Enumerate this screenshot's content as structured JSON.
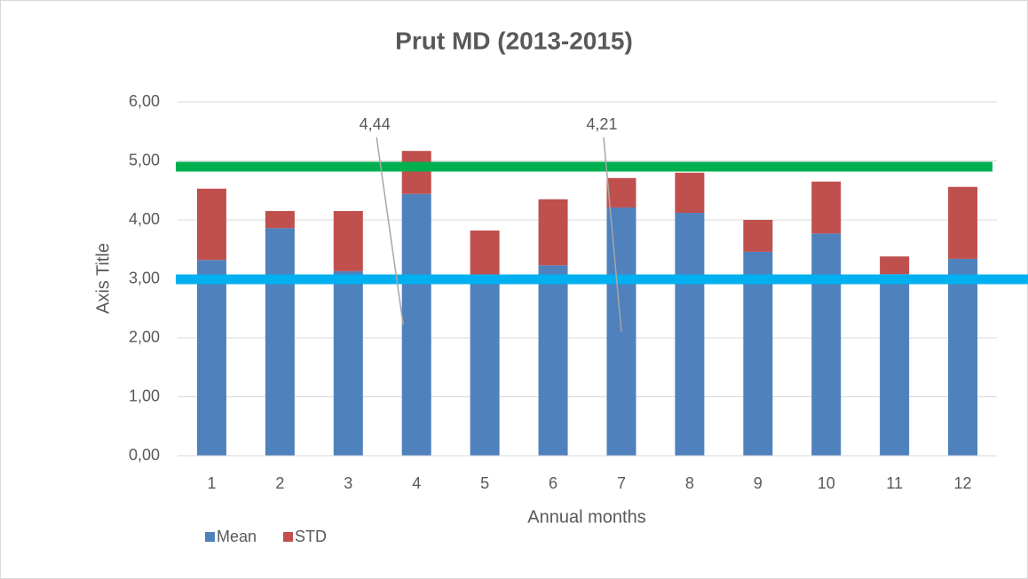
{
  "chart_data": {
    "type": "stacked_bar",
    "title": "Prut MD (2013-2015)",
    "x_label": "Annual months",
    "y_label": "Axis Title",
    "categories": [
      "1",
      "2",
      "3",
      "4",
      "5",
      "6",
      "7",
      "8",
      "9",
      "10",
      "11",
      "12"
    ],
    "series": [
      {
        "name": "Mean",
        "color": "#4f81bd",
        "values": [
          3.32,
          3.86,
          3.13,
          4.44,
          2.92,
          3.23,
          4.21,
          4.12,
          3.46,
          3.77,
          3.08,
          3.34
        ],
        "value_labels": [
          null,
          null,
          null,
          "4,44",
          null,
          null,
          "4,21",
          null,
          null,
          null,
          null,
          null
        ]
      },
      {
        "name": "STD",
        "color": "#c0504d",
        "values": [
          1.21,
          0.29,
          1.02,
          0.73,
          0.9,
          1.12,
          0.5,
          0.68,
          0.54,
          0.88,
          0.3,
          1.22
        ]
      }
    ],
    "ylim": [
      0,
      6
    ],
    "yticks": [
      {
        "value": 0,
        "label": "0,00"
      },
      {
        "value": 1,
        "label": "1,00"
      },
      {
        "value": 2,
        "label": "2,00"
      },
      {
        "value": 3,
        "label": "3,00"
      },
      {
        "value": 4,
        "label": "4,00"
      },
      {
        "value": 5,
        "label": "5,00"
      },
      {
        "value": 6,
        "label": "6,00"
      }
    ],
    "grid": true,
    "legend": "bottom-left"
  }
}
